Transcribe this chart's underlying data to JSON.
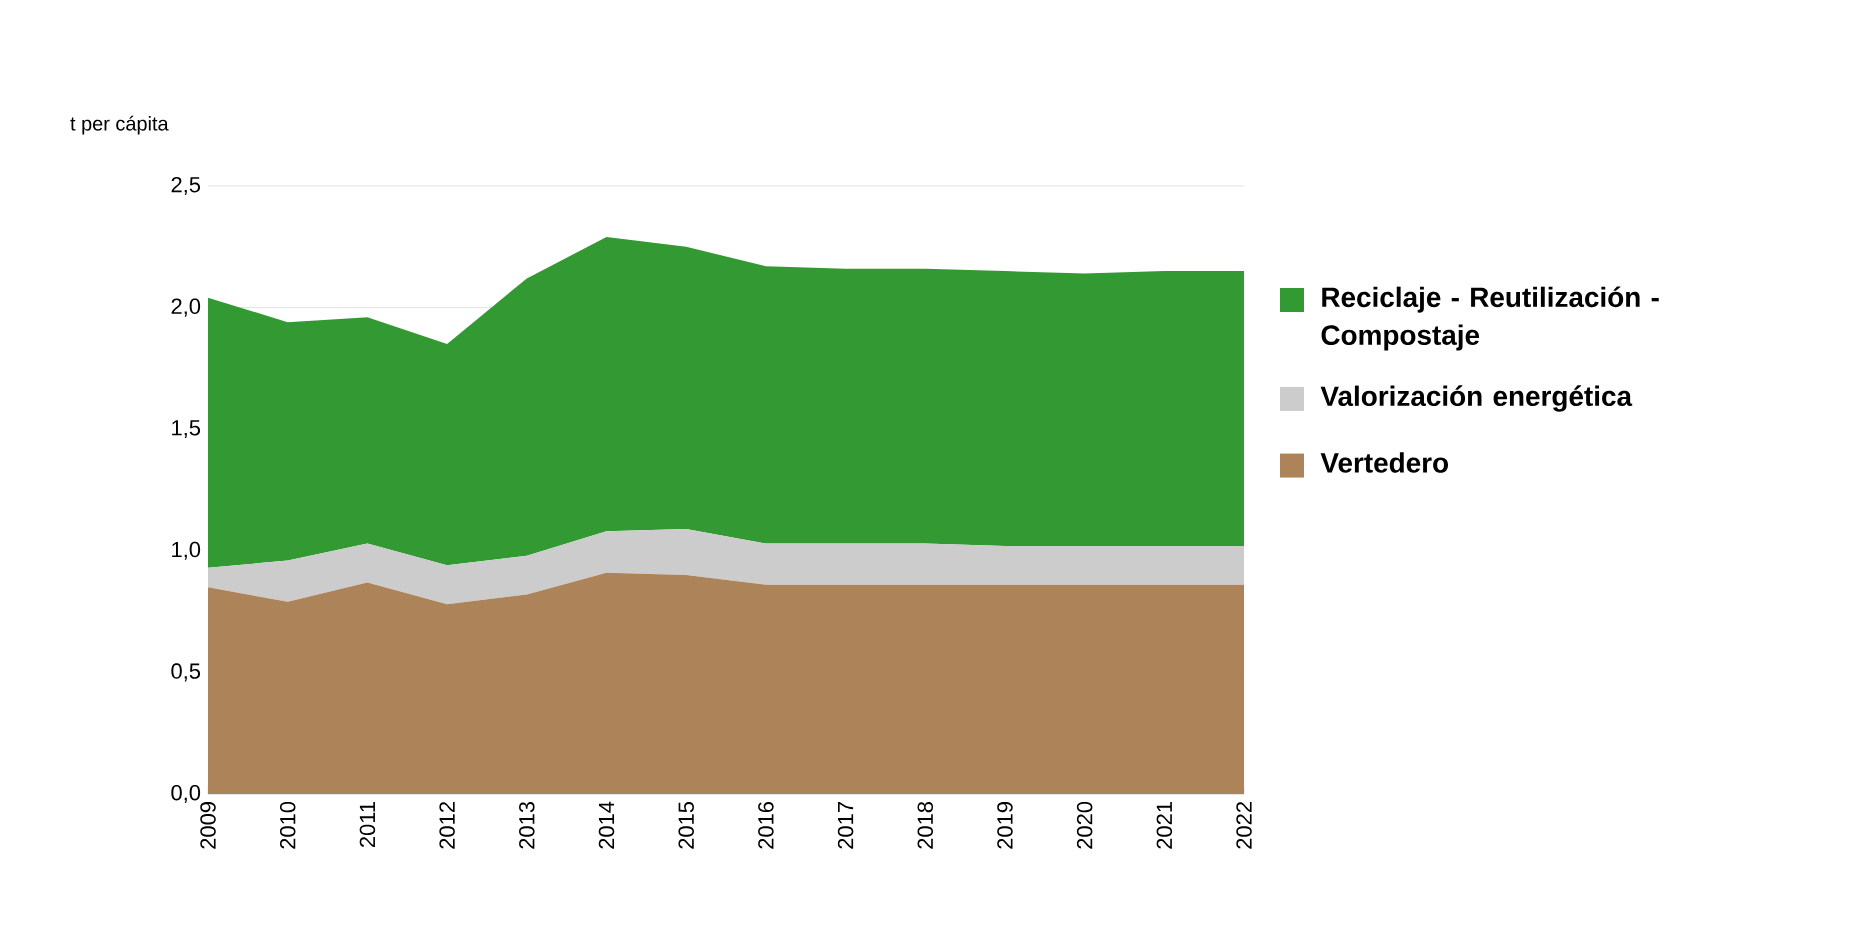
{
  "chart_data": {
    "type": "area",
    "stacked": true,
    "ylabel": "t per cápita",
    "categories": [
      "2009",
      "2010",
      "2011",
      "2012",
      "2013",
      "2014",
      "2015",
      "2016",
      "2017",
      "2018",
      "2019",
      "2020",
      "2021",
      "2022"
    ],
    "series": [
      {
        "name": "Vertedero",
        "color": "#ad835a",
        "values": [
          0.85,
          0.79,
          0.87,
          0.78,
          0.82,
          0.91,
          0.9,
          0.86,
          0.86,
          0.86,
          0.86,
          0.86,
          0.86,
          0.86
        ]
      },
      {
        "name": "Valorización energética",
        "color": "#cccccc",
        "values": [
          0.08,
          0.17,
          0.16,
          0.16,
          0.16,
          0.17,
          0.19,
          0.17,
          0.17,
          0.17,
          0.16,
          0.16,
          0.16,
          0.16
        ]
      },
      {
        "name": "Reciclaje - Reutilización - Compostaje",
        "color": "#339933",
        "values": [
          1.11,
          0.98,
          0.93,
          0.91,
          1.14,
          1.21,
          1.16,
          1.14,
          1.13,
          1.13,
          1.13,
          1.12,
          1.13,
          1.13
        ]
      }
    ],
    "ylim": [
      0,
      2.5
    ],
    "yticks": [
      {
        "value": 0,
        "label": "0,0"
      },
      {
        "value": 0.5,
        "label": "0,5"
      },
      {
        "value": 1,
        "label": "1,0"
      },
      {
        "value": 1.5,
        "label": "1,5"
      },
      {
        "value": 2,
        "label": "2,0"
      },
      {
        "value": 2.5,
        "label": "2,5"
      }
    ],
    "grid": "y",
    "legend": "right"
  }
}
